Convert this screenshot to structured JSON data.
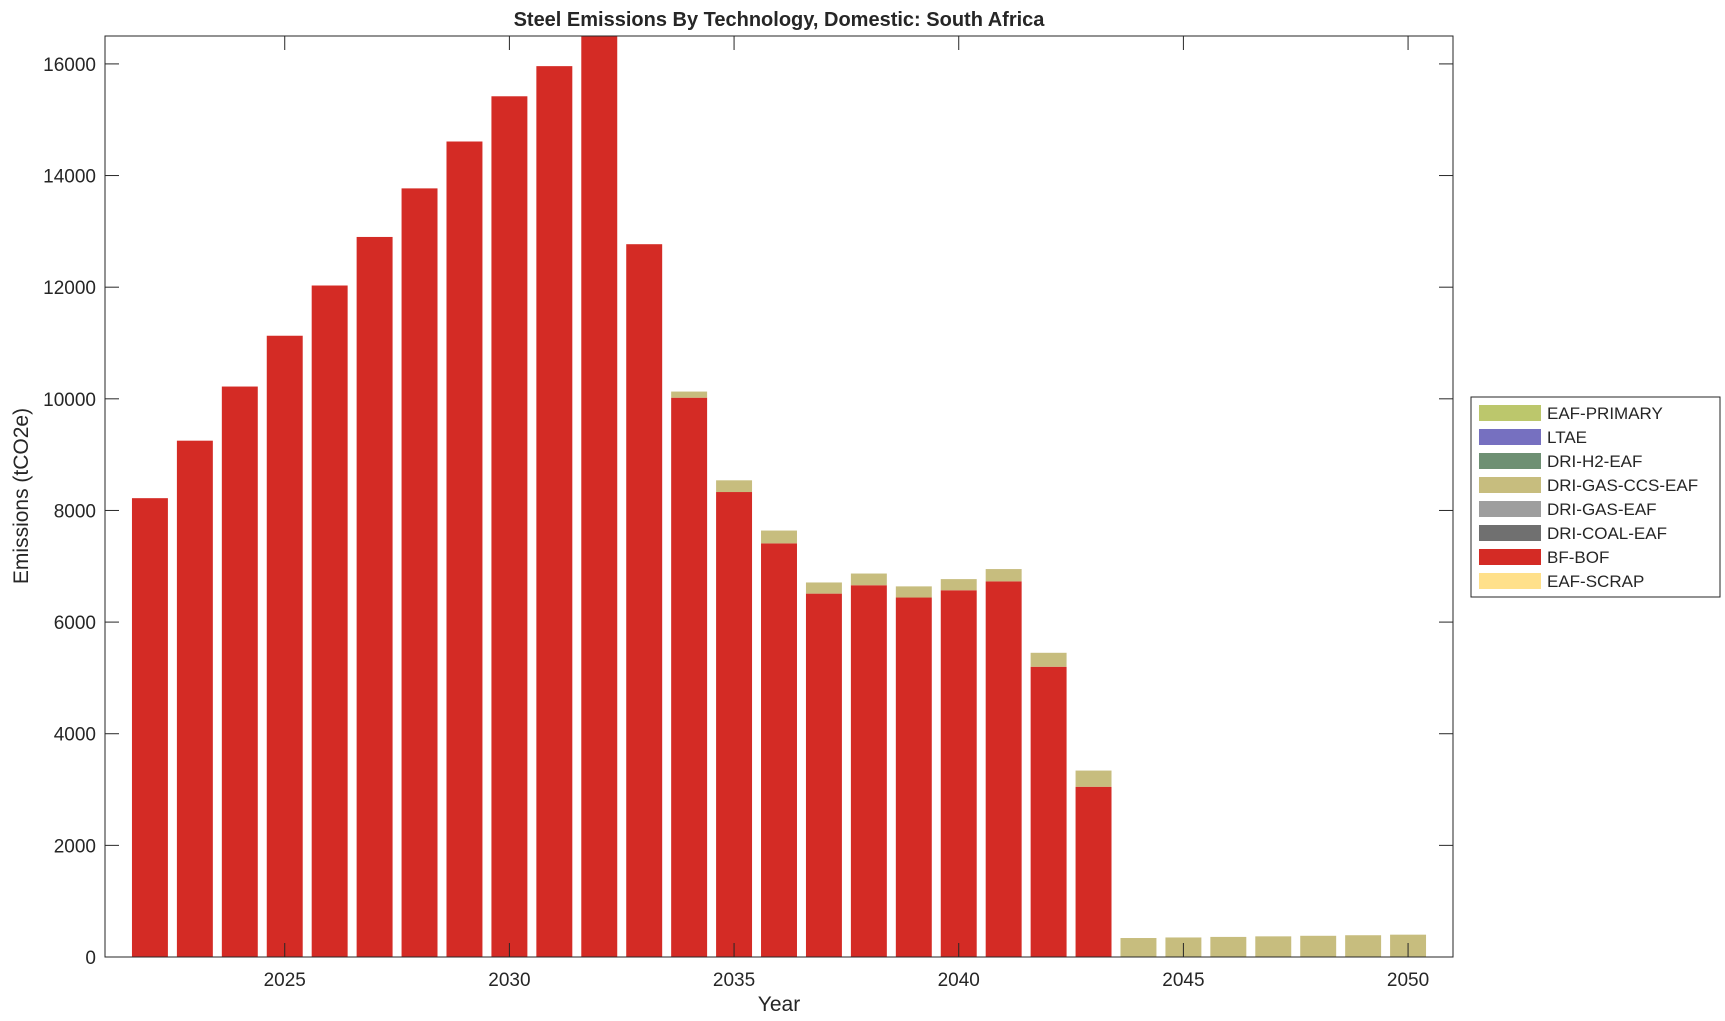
{
  "chart_data": {
    "type": "bar",
    "stacked": true,
    "title": "Steel Emissions By Technology, Domestic: South Africa",
    "xlabel": "Year",
    "ylabel": "Emissions (tCO2e)",
    "xlim": [
      2021,
      2051
    ],
    "ylim": [
      0,
      16500
    ],
    "xticks": [
      2025,
      2030,
      2035,
      2040,
      2045,
      2050
    ],
    "yticks": [
      0,
      2000,
      4000,
      6000,
      8000,
      10000,
      12000,
      14000,
      16000
    ],
    "legend_position": "right",
    "categories": [
      2022,
      2023,
      2024,
      2025,
      2026,
      2027,
      2028,
      2029,
      2030,
      2031,
      2032,
      2033,
      2034,
      2035,
      2036,
      2037,
      2038,
      2039,
      2040,
      2041,
      2042,
      2043,
      2044,
      2045,
      2046,
      2047,
      2048,
      2049,
      2050
    ],
    "series": [
      {
        "name": "EAF-SCRAP",
        "color": "#ffe08a",
        "values": [
          0,
          0,
          0,
          0,
          0,
          0,
          0,
          0,
          0,
          0,
          0,
          0,
          0,
          0,
          0,
          0,
          0,
          0,
          0,
          0,
          0,
          0,
          0,
          0,
          0,
          0,
          0,
          0,
          0
        ]
      },
      {
        "name": "BF-BOF",
        "color": "#d42b25",
        "values": [
          8220,
          9250,
          10220,
          11130,
          12030,
          12900,
          13770,
          14610,
          15420,
          15960,
          16500,
          12770,
          10020,
          8330,
          7410,
          6510,
          6660,
          6440,
          6570,
          6730,
          5200,
          3050,
          0,
          0,
          0,
          0,
          0,
          0,
          0
        ]
      },
      {
        "name": "DRI-COAL-EAF",
        "color": "#707070",
        "values": [
          0,
          0,
          0,
          0,
          0,
          0,
          0,
          0,
          0,
          0,
          0,
          0,
          0,
          0,
          0,
          0,
          0,
          0,
          0,
          0,
          0,
          0,
          0,
          0,
          0,
          0,
          0,
          0,
          0
        ]
      },
      {
        "name": "DRI-GAS-EAF",
        "color": "#9e9e9e",
        "values": [
          0,
          0,
          0,
          0,
          0,
          0,
          0,
          0,
          0,
          0,
          0,
          0,
          0,
          0,
          0,
          0,
          0,
          0,
          0,
          0,
          0,
          0,
          0,
          0,
          0,
          0,
          0,
          0,
          0
        ]
      },
      {
        "name": "DRI-GAS-CCS-EAF",
        "color": "#c7bd7e",
        "values": [
          0,
          0,
          0,
          0,
          0,
          0,
          0,
          0,
          0,
          0,
          0,
          0,
          110,
          210,
          230,
          200,
          210,
          200,
          200,
          220,
          250,
          290,
          340,
          350,
          360,
          370,
          380,
          390,
          400
        ]
      },
      {
        "name": "DRI-H2-EAF",
        "color": "#6e9073",
        "values": [
          0,
          0,
          0,
          0,
          0,
          0,
          0,
          0,
          0,
          0,
          0,
          0,
          0,
          0,
          0,
          0,
          0,
          0,
          0,
          0,
          0,
          0,
          0,
          0,
          0,
          0,
          0,
          0,
          0
        ]
      },
      {
        "name": "LTAE",
        "color": "#7670c0",
        "values": [
          0,
          0,
          0,
          0,
          0,
          0,
          0,
          0,
          0,
          0,
          0,
          0,
          0,
          0,
          0,
          0,
          0,
          0,
          0,
          0,
          0,
          0,
          0,
          0,
          0,
          0,
          0,
          0,
          0
        ]
      },
      {
        "name": "EAF-PRIMARY",
        "color": "#bcc76c",
        "values": [
          0,
          0,
          0,
          0,
          0,
          0,
          0,
          0,
          0,
          0,
          0,
          0,
          0,
          0,
          0,
          0,
          0,
          0,
          0,
          0,
          0,
          0,
          0,
          0,
          0,
          0,
          0,
          0,
          0
        ]
      }
    ],
    "legend_order": [
      "EAF-PRIMARY",
      "LTAE",
      "DRI-H2-EAF",
      "DRI-GAS-CCS-EAF",
      "DRI-GAS-EAF",
      "DRI-COAL-EAF",
      "BF-BOF",
      "EAF-SCRAP"
    ]
  }
}
